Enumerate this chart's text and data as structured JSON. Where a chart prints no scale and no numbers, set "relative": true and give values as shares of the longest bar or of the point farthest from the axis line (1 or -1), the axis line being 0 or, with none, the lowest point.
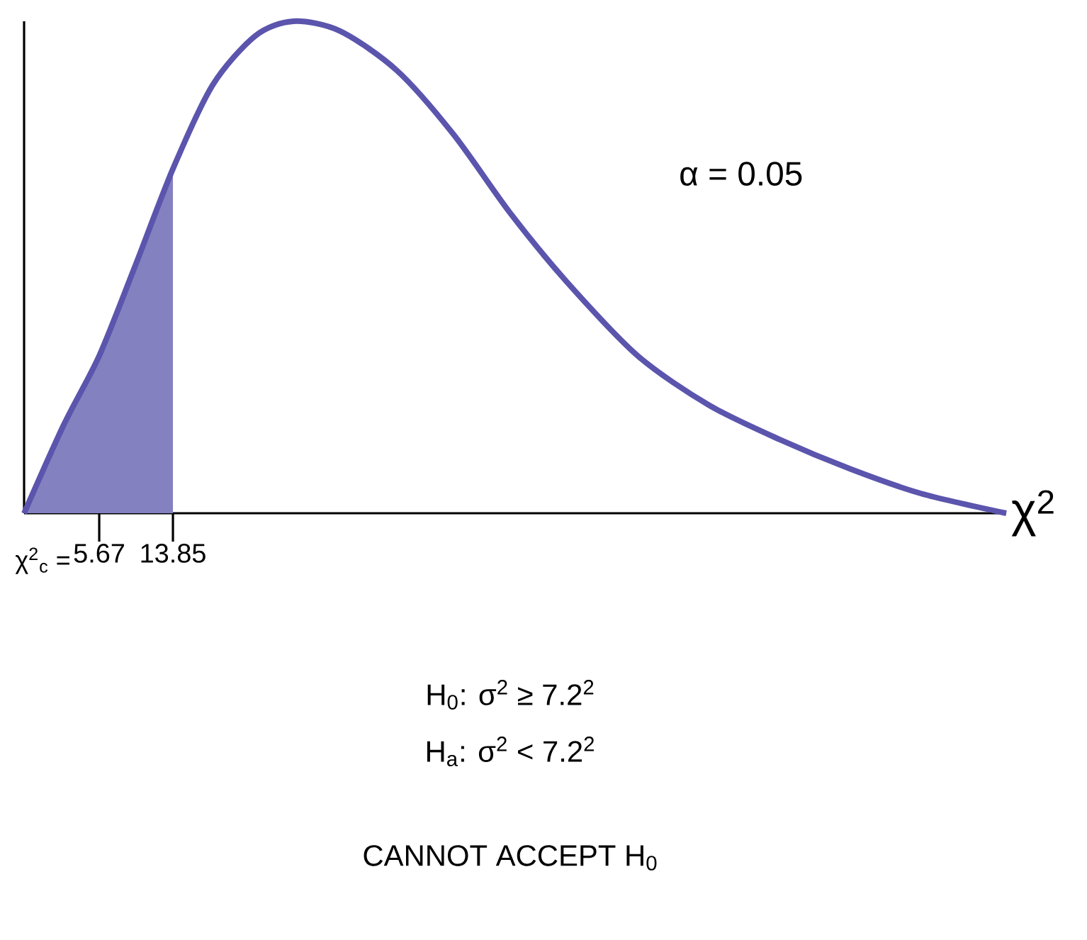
{
  "chart_data": {
    "type": "line",
    "relative": true,
    "xlabel": "χ$^{2}$",
    "xlim": [
      -2.67,
      106.34
    ],
    "xticks": [
      5.67,
      13.85
    ],
    "series": [
      {
        "type": "area",
        "color": "#8481c0",
        "x": [
          -2.67,
          1.74,
          5.67,
          9.6,
          13.85
        ],
        "values": [
          0,
          0.18,
          0.32,
          0.5,
          0.7
        ]
      },
      {
        "color": "#5b55ad",
        "x": [
          -2.67,
          1.74,
          5.67,
          9.6,
          13.85,
          18.25,
          22.97,
          27.22,
          32.41,
          38.7,
          44.99,
          51.29,
          57.58,
          65.44,
          73.31,
          81.17,
          89.04,
          96.9,
          106.34
        ],
        "values": [
          0,
          0.18,
          0.32,
          0.5,
          0.7,
          0.87,
          0.97,
          1,
          0.98,
          0.9,
          0.77,
          0.61,
          0.47,
          0.32,
          0.22,
          0.15,
          0.09,
          0.04,
          0
        ]
      }
    ],
    "annotations": [
      "α = 0.05",
      "χ$^{2}$$_{c}$ =",
      "H$_{0}$: σ$^{2}$ ≥ 7.2$^{2}$",
      "H$_{a}$: σ$^{2}$ < 7.2$^{2}$",
      "CANNOT ACCEPT H$_{0}$"
    ]
  }
}
